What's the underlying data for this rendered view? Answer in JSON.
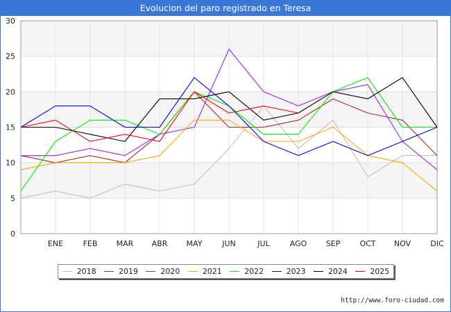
{
  "title": "Evolucion del paro registrado en Teresa",
  "source": "http://www.foro-ciudad.com",
  "chart_data": {
    "type": "line",
    "categories": [
      "",
      "ENE",
      "FEB",
      "MAR",
      "ABR",
      "MAY",
      "JUN",
      "JUL",
      "AGO",
      "SEP",
      "OCT",
      "NOV",
      "DIC"
    ],
    "ylim": [
      0,
      30
    ],
    "yticks": [
      0,
      5,
      10,
      15,
      20,
      25,
      30
    ],
    "grid": true,
    "legend_position": "bottom",
    "series": [
      {
        "name": "2018",
        "color": "#c0c0c0",
        "values": [
          5,
          6,
          5,
          7,
          6,
          7,
          12,
          18,
          12,
          16,
          8,
          11,
          11
        ]
      },
      {
        "name": "2019",
        "color": "#a52a2a",
        "values": [
          11,
          10,
          11,
          10,
          14,
          20,
          15,
          15,
          16,
          19,
          17,
          16,
          11
        ]
      },
      {
        "name": "2020",
        "color": "#a020f0",
        "values": [
          11,
          11,
          12,
          11,
          14,
          15,
          26,
          20,
          18,
          20,
          21,
          13,
          9
        ]
      },
      {
        "name": "2021",
        "color": "#ffa500",
        "values": [
          9,
          10,
          10,
          10,
          11,
          16,
          16,
          13,
          13,
          15,
          11,
          10,
          6
        ]
      },
      {
        "name": "2022",
        "color": "#00ee00",
        "values": [
          6,
          13,
          16,
          16,
          14,
          20,
          18,
          14,
          14,
          20,
          22,
          15,
          15
        ]
      },
      {
        "name": "2023",
        "color": "#0000ee",
        "values": [
          15,
          18,
          18,
          15,
          15,
          22,
          18,
          13,
          11,
          13,
          11,
          13,
          15
        ]
      },
      {
        "name": "2024",
        "color": "#000000",
        "values": [
          15,
          15,
          14,
          13,
          19,
          19,
          20,
          16,
          17,
          20,
          19,
          22,
          15
        ]
      },
      {
        "name": "2025",
        "color": "#ff0000",
        "values": [
          15,
          16,
          13,
          14,
          13,
          20,
          17,
          18,
          17,
          null,
          null,
          null,
          null
        ]
      }
    ]
  }
}
